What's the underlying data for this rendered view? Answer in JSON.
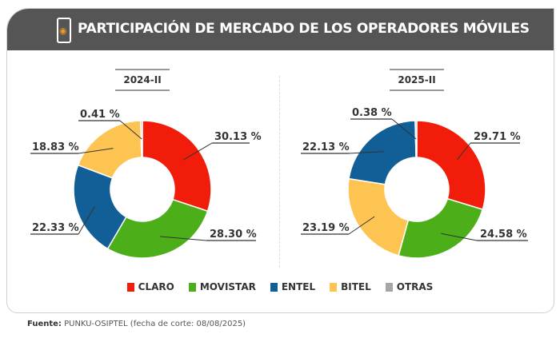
{
  "title": "PARTICIPACIÓN DE MERCADO DE LOS OPERADORES MÓVILES",
  "header_icon": "phone-wifi-icon",
  "colors": {
    "CLARO": "#f21c0a",
    "MOVISTAR": "#4caf1a",
    "ENTEL": "#125e96",
    "BITEL": "#fdc452",
    "OTRAS": "#a6a6a6"
  },
  "chart_data": [
    {
      "type": "pie",
      "variant": "donut",
      "title": "2024-II",
      "slices": [
        {
          "name": "CLARO",
          "value": 30.13,
          "label": "30.13 %"
        },
        {
          "name": "MOVISTAR",
          "value": 28.3,
          "label": "28.30 %"
        },
        {
          "name": "ENTEL",
          "value": 22.33,
          "label": "22.33 %"
        },
        {
          "name": "BITEL",
          "value": 18.83,
          "label": "18.83 %"
        },
        {
          "name": "OTRAS",
          "value": 0.41,
          "label": "0.41 %"
        }
      ]
    },
    {
      "type": "pie",
      "variant": "donut",
      "title": "2025-II",
      "slices": [
        {
          "name": "CLARO",
          "value": 29.71,
          "label": "29.71 %"
        },
        {
          "name": "MOVISTAR",
          "value": 24.58,
          "label": "24.58 %"
        },
        {
          "name": "BITEL",
          "value": 23.19,
          "label": "23.19 %"
        },
        {
          "name": "ENTEL",
          "value": 22.13,
          "label": "22.13 %"
        },
        {
          "name": "OTRAS",
          "value": 0.38,
          "label": "0.38 %"
        }
      ]
    }
  ],
  "legend": [
    "CLARO",
    "MOVISTAR",
    "ENTEL",
    "BITEL",
    "OTRAS"
  ],
  "source": {
    "label": "Fuente:",
    "text": " PUNKU-OSIPTEL (fecha de corte: 08/08/2025)"
  }
}
